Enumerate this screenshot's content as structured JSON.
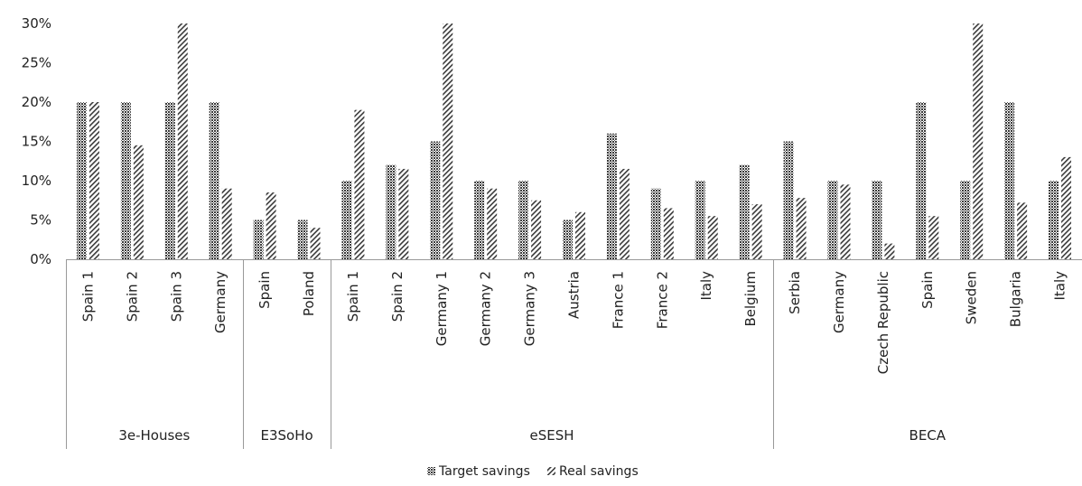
{
  "chart_data": {
    "type": "bar",
    "title": "",
    "xlabel": "",
    "ylabel": "",
    "ylim": [
      0,
      30
    ],
    "yticks": [
      "0%",
      "5%",
      "10%",
      "15%",
      "20%",
      "25%",
      "30%"
    ],
    "grid": false,
    "legend_position": "bottom",
    "groups": [
      {
        "label": "3e-Houses",
        "count": 4
      },
      {
        "label": "E3SoHo",
        "count": 2
      },
      {
        "label": "eSESH",
        "count": 10
      },
      {
        "label": "BECA",
        "count": 7
      }
    ],
    "categories": [
      "Spain 1",
      "Spain 2",
      "Spain 3",
      "Germany",
      "Spain",
      "Poland",
      "Spain 1",
      "Spain 2",
      "Germany 1",
      "Germany 2",
      "Germany 3",
      "Austria",
      "France 1",
      "France 2",
      "Italy",
      "Belgium",
      "Serbia",
      "Germany",
      "Czech Republic",
      "Spain",
      "Sweden",
      "Bulgaria",
      "Italy"
    ],
    "series": [
      {
        "name": "Target savings",
        "pattern": "dense-dots",
        "values": [
          20,
          20,
          20,
          20,
          5,
          5,
          10,
          12,
          15,
          10,
          10,
          5,
          16,
          9,
          10,
          12,
          15,
          10,
          10,
          20,
          10,
          20,
          10
        ]
      },
      {
        "name": "Real savings",
        "pattern": "diagonal-hatch",
        "values": [
          20,
          14.5,
          30,
          9,
          8.5,
          4,
          19,
          11.5,
          30,
          9,
          7.5,
          6,
          11.5,
          6.5,
          5.5,
          7,
          7.8,
          9.5,
          2,
          5.5,
          30,
          7.2,
          13
        ]
      }
    ]
  }
}
